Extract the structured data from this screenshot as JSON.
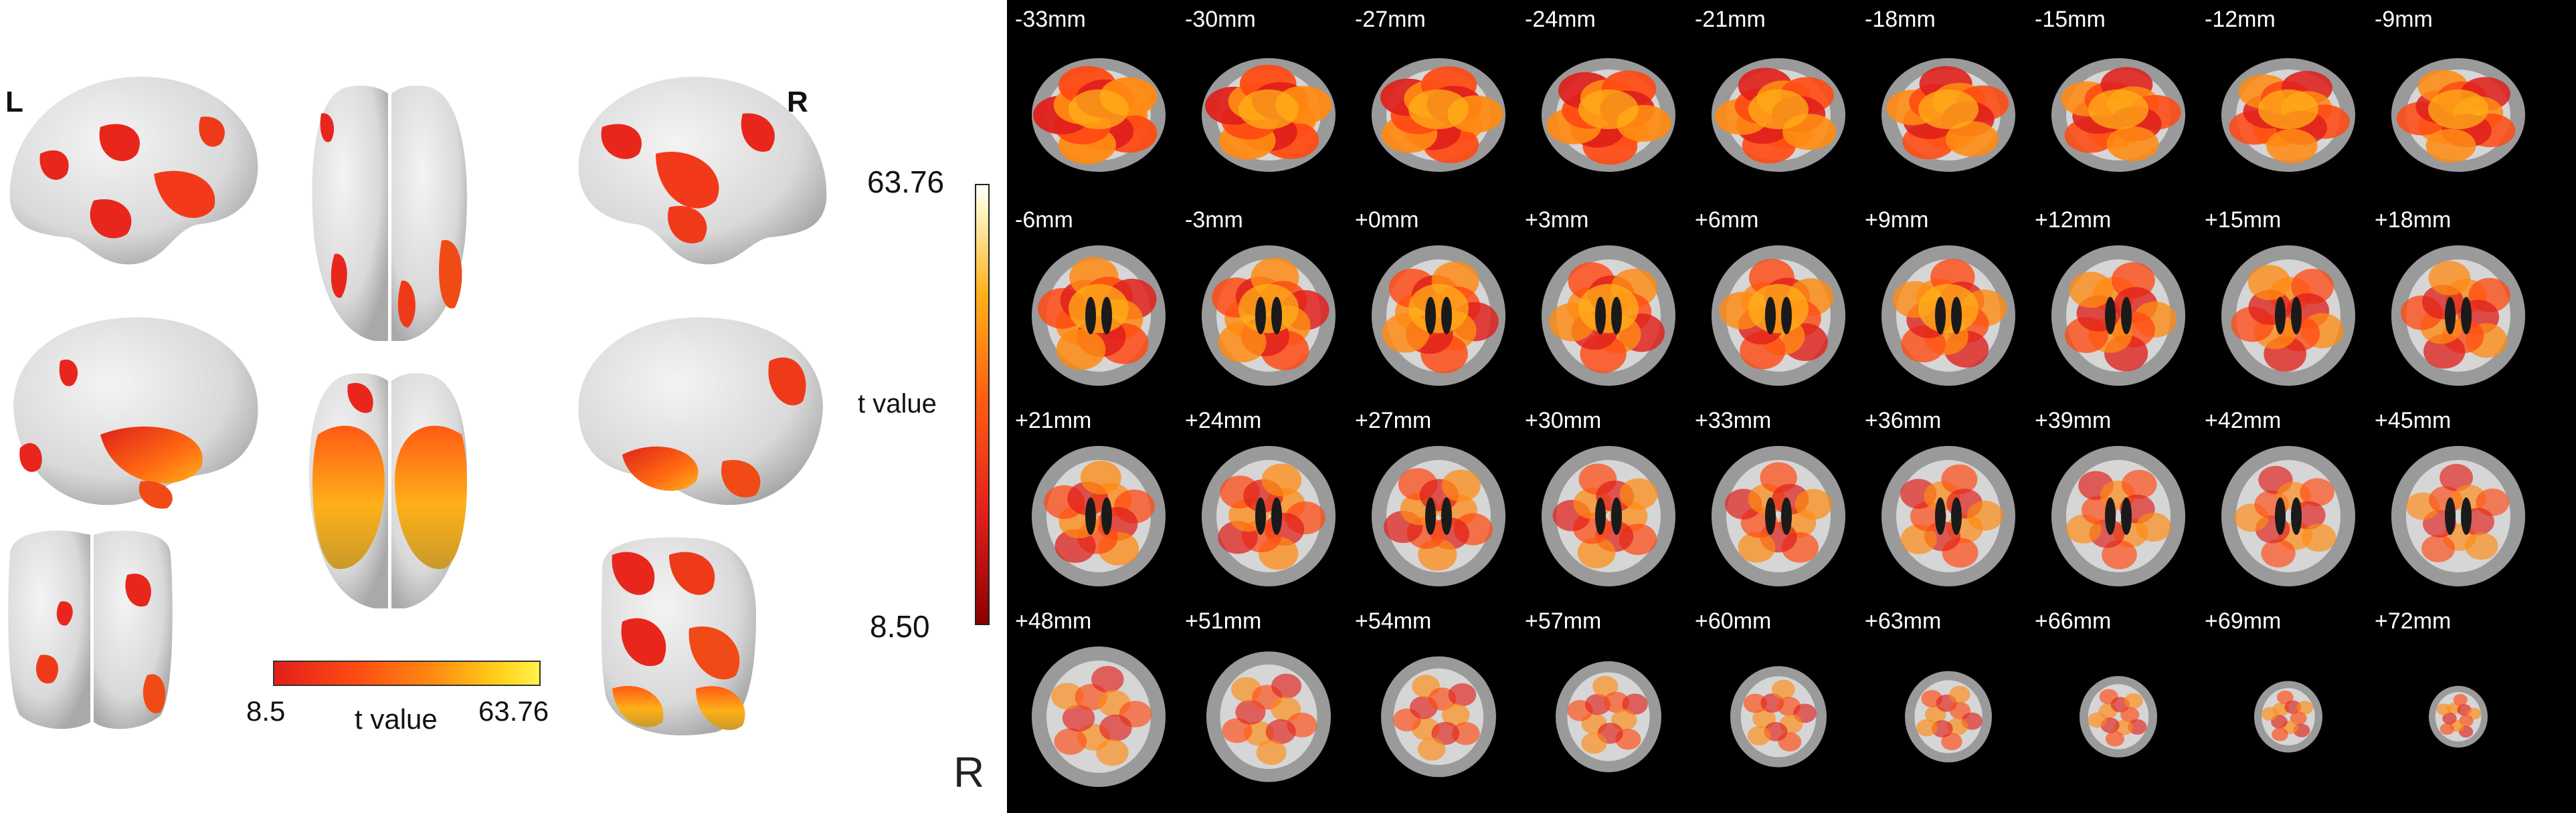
{
  "left_panel": {
    "hemisphere_left_label": "L",
    "hemisphere_right_label": "R",
    "colorbar": {
      "min_label": "8.5",
      "max_label": "63.76",
      "title": "t value",
      "colors": [
        "#e0201b",
        "#ff8a12",
        "#fff24a"
      ]
    },
    "views": [
      "lateral-left",
      "dorsal",
      "lateral-right",
      "medial-left",
      "ventral",
      "medial-right",
      "posterior",
      "anterior-oblique"
    ]
  },
  "middle_colorbar": {
    "max_label": "63.76",
    "min_label": "8.50",
    "title": "t value"
  },
  "orientation": {
    "right_label": "R",
    "left_label": "L"
  },
  "slices": {
    "rows": [
      [
        "-33mm",
        "-30mm",
        "-27mm",
        "-24mm",
        "-21mm",
        "-18mm",
        "-15mm",
        "-12mm",
        "-9mm"
      ],
      [
        "-6mm",
        "-3mm",
        "+0mm",
        "+3mm",
        "+6mm",
        "+9mm",
        "+12mm",
        "+15mm",
        "+18mm"
      ],
      [
        "+21mm",
        "+24mm",
        "+27mm",
        "+30mm",
        "+33mm",
        "+36mm",
        "+39mm",
        "+42mm",
        "+45mm"
      ],
      [
        "+48mm",
        "+51mm",
        "+54mm",
        "+57mm",
        "+60mm",
        "+63mm",
        "+66mm",
        "+69mm",
        "+72mm"
      ]
    ]
  }
}
